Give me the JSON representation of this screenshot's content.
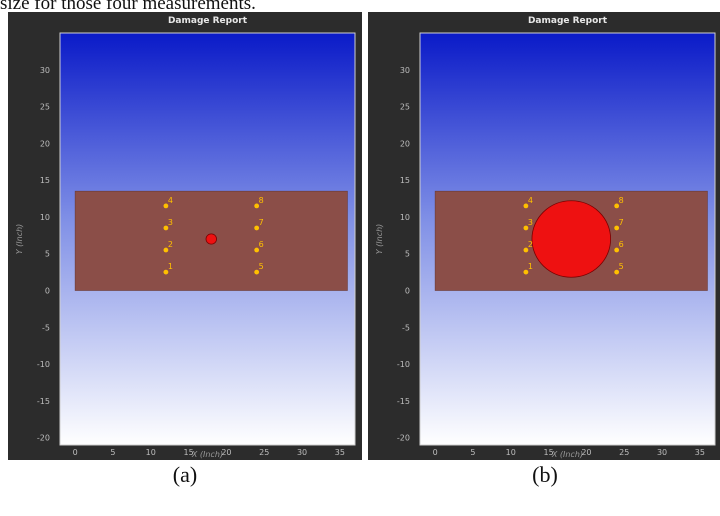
{
  "header": {
    "text": "size for those four measurements."
  },
  "chart_data": [
    {
      "type": "scatter",
      "title": "Damage Report",
      "xlabel": "X (Inch)",
      "ylabel": "Y (Inch)",
      "xlim": [
        -2,
        37
      ],
      "ylim": [
        -21,
        35
      ],
      "xticks": [
        0,
        5,
        10,
        15,
        20,
        25,
        30,
        35
      ],
      "yticks": [
        -20,
        -15,
        -10,
        -5,
        0,
        5,
        10,
        15,
        20,
        25,
        30
      ],
      "grid": false,
      "plate": {
        "x": [
          0,
          36
        ],
        "y": [
          0,
          13.5
        ],
        "color": "#8B4E48"
      },
      "series": [
        {
          "points": [
            {
              "x": 12,
              "y": 2.5,
              "label": "1"
            },
            {
              "x": 12,
              "y": 5.5,
              "label": "2"
            },
            {
              "x": 12,
              "y": 8.5,
              "label": "3"
            },
            {
              "x": 12,
              "y": 11.5,
              "label": "4"
            },
            {
              "x": 24,
              "y": 2.5,
              "label": "5"
            },
            {
              "x": 24,
              "y": 5.5,
              "label": "6"
            },
            {
              "x": 24,
              "y": 8.5,
              "label": "7"
            },
            {
              "x": 24,
              "y": 11.5,
              "label": "8"
            }
          ],
          "color": "#FFC000"
        }
      ],
      "damage": {
        "x": 18,
        "y": 7,
        "radius": 0.7,
        "color": "#EE1111"
      },
      "caption": "(a)"
    },
    {
      "type": "scatter",
      "title": "Damage Report",
      "xlabel": "X (Inch)",
      "ylabel": "Y (Inch)",
      "xlim": [
        -2,
        37
      ],
      "ylim": [
        -21,
        35
      ],
      "xticks": [
        0,
        5,
        10,
        15,
        20,
        25,
        30,
        35
      ],
      "yticks": [
        -20,
        -15,
        -10,
        -5,
        0,
        5,
        10,
        15,
        20,
        25,
        30
      ],
      "grid": false,
      "plate": {
        "x": [
          0,
          36
        ],
        "y": [
          0,
          13.5
        ],
        "color": "#8B4E48"
      },
      "series": [
        {
          "points": [
            {
              "x": 12,
              "y": 2.5,
              "label": "1"
            },
            {
              "x": 12,
              "y": 5.5,
              "label": "2"
            },
            {
              "x": 12,
              "y": 8.5,
              "label": "3"
            },
            {
              "x": 12,
              "y": 11.5,
              "label": "4"
            },
            {
              "x": 24,
              "y": 2.5,
              "label": "5"
            },
            {
              "x": 24,
              "y": 5.5,
              "label": "6"
            },
            {
              "x": 24,
              "y": 8.5,
              "label": "7"
            },
            {
              "x": 24,
              "y": 11.5,
              "label": "8"
            }
          ],
          "color": "#FFC000"
        }
      ],
      "damage": {
        "x": 18,
        "y": 7,
        "radius": 5.2,
        "color": "#EE1111"
      },
      "caption": "(b)"
    }
  ]
}
